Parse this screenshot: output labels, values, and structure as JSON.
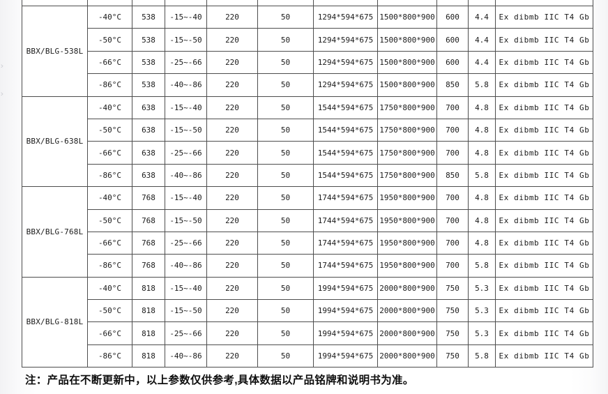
{
  "table": {
    "columns": [
      "temp",
      "volume",
      "range",
      "voltage",
      "frequency",
      "inner_size",
      "outer_size",
      "power",
      "current",
      "ex_mark"
    ],
    "border_color": "#4d4d4d",
    "groups": [
      {
        "model": "BBX/BLG-538L",
        "rows": [
          [
            "-40°C",
            "538",
            "-15~-40",
            "220",
            "50",
            "1294*594*675",
            "1500*800*900",
            "600",
            "4.4",
            "Ex dibmb IIC T4 Gb"
          ],
          [
            "-50°C",
            "538",
            "-15~-50",
            "220",
            "50",
            "1294*594*675",
            "1500*800*900",
            "600",
            "4.4",
            "Ex dibmb IIC T4 Gb"
          ],
          [
            "-66°C",
            "538",
            "-25~-66",
            "220",
            "50",
            "1294*594*675",
            "1500*800*900",
            "600",
            "4.4",
            "Ex dibmb IIC T4 Gb"
          ],
          [
            "-86°C",
            "538",
            "-40~-86",
            "220",
            "50",
            "1294*594*675",
            "1500*800*900",
            "850",
            "5.8",
            "Ex dibmb IIC T4 Gb"
          ]
        ]
      },
      {
        "model": "BBX/BLG-638L",
        "rows": [
          [
            "-40°C",
            "638",
            "-15~-40",
            "220",
            "50",
            "1544*594*675",
            "1750*800*900",
            "700",
            "4.8",
            "Ex dibmb IIC T4 Gb"
          ],
          [
            "-50°C",
            "638",
            "-15~-50",
            "220",
            "50",
            "1544*594*675",
            "1750*800*900",
            "700",
            "4.8",
            "Ex dibmb IIC T4 Gb"
          ],
          [
            "-66°C",
            "638",
            "-25~-66",
            "220",
            "50",
            "1544*594*675",
            "1750*800*900",
            "700",
            "4.8",
            "Ex dibmb IIC T4 Gb"
          ],
          [
            "-86°C",
            "638",
            "-40~-86",
            "220",
            "50",
            "1544*594*675",
            "1750*800*900",
            "850",
            "5.8",
            "Ex dibmb IIC T4 Gb"
          ]
        ]
      },
      {
        "model": "BBX/BLG-768L",
        "rows": [
          [
            "-40°C",
            "768",
            "-15~-40",
            "220",
            "50",
            "1744*594*675",
            "1950*800*900",
            "700",
            "4.8",
            "Ex dibmb IIC T4 Gb"
          ],
          [
            "-50°C",
            "768",
            "-15~-50",
            "220",
            "50",
            "1744*594*675",
            "1950*800*900",
            "700",
            "4.8",
            "Ex dibmb IIC T4 Gb"
          ],
          [
            "-66°C",
            "768",
            "-25~-66",
            "220",
            "50",
            "1744*594*675",
            "1950*800*900",
            "700",
            "4.8",
            "Ex dibmb IIC T4 Gb"
          ],
          [
            "-86°C",
            "768",
            "-40~-86",
            "220",
            "50",
            "1744*594*675",
            "1950*800*900",
            "700",
            "5.8",
            "Ex dibmb IIC T4 Gb"
          ]
        ]
      },
      {
        "model": "BBX/BLG-818L",
        "rows": [
          [
            "-40°C",
            "818",
            "-15~-40",
            "220",
            "50",
            "1994*594*675",
            "2000*800*900",
            "750",
            "5.3",
            "Ex dibmb IIC T4 Gb"
          ],
          [
            "-50°C",
            "818",
            "-15~-50",
            "220",
            "50",
            "1994*594*675",
            "2000*800*900",
            "750",
            "5.3",
            "Ex dibmb IIC T4 Gb"
          ],
          [
            "-66°C",
            "818",
            "-25~-66",
            "220",
            "50",
            "1994*594*675",
            "2000*800*900",
            "750",
            "5.3",
            "Ex dibmb IIC T4 Gb"
          ],
          [
            "-86°C",
            "818",
            "-40~-86",
            "220",
            "50",
            "1994*594*675",
            "2000*800*900",
            "750",
            "5.8",
            "Ex dibmb IIC T4 Gb"
          ]
        ]
      }
    ]
  },
  "note": "注：产品在不断更新中，以上参数仅供参考,具体数据以产品铭牌和说明书为准。"
}
